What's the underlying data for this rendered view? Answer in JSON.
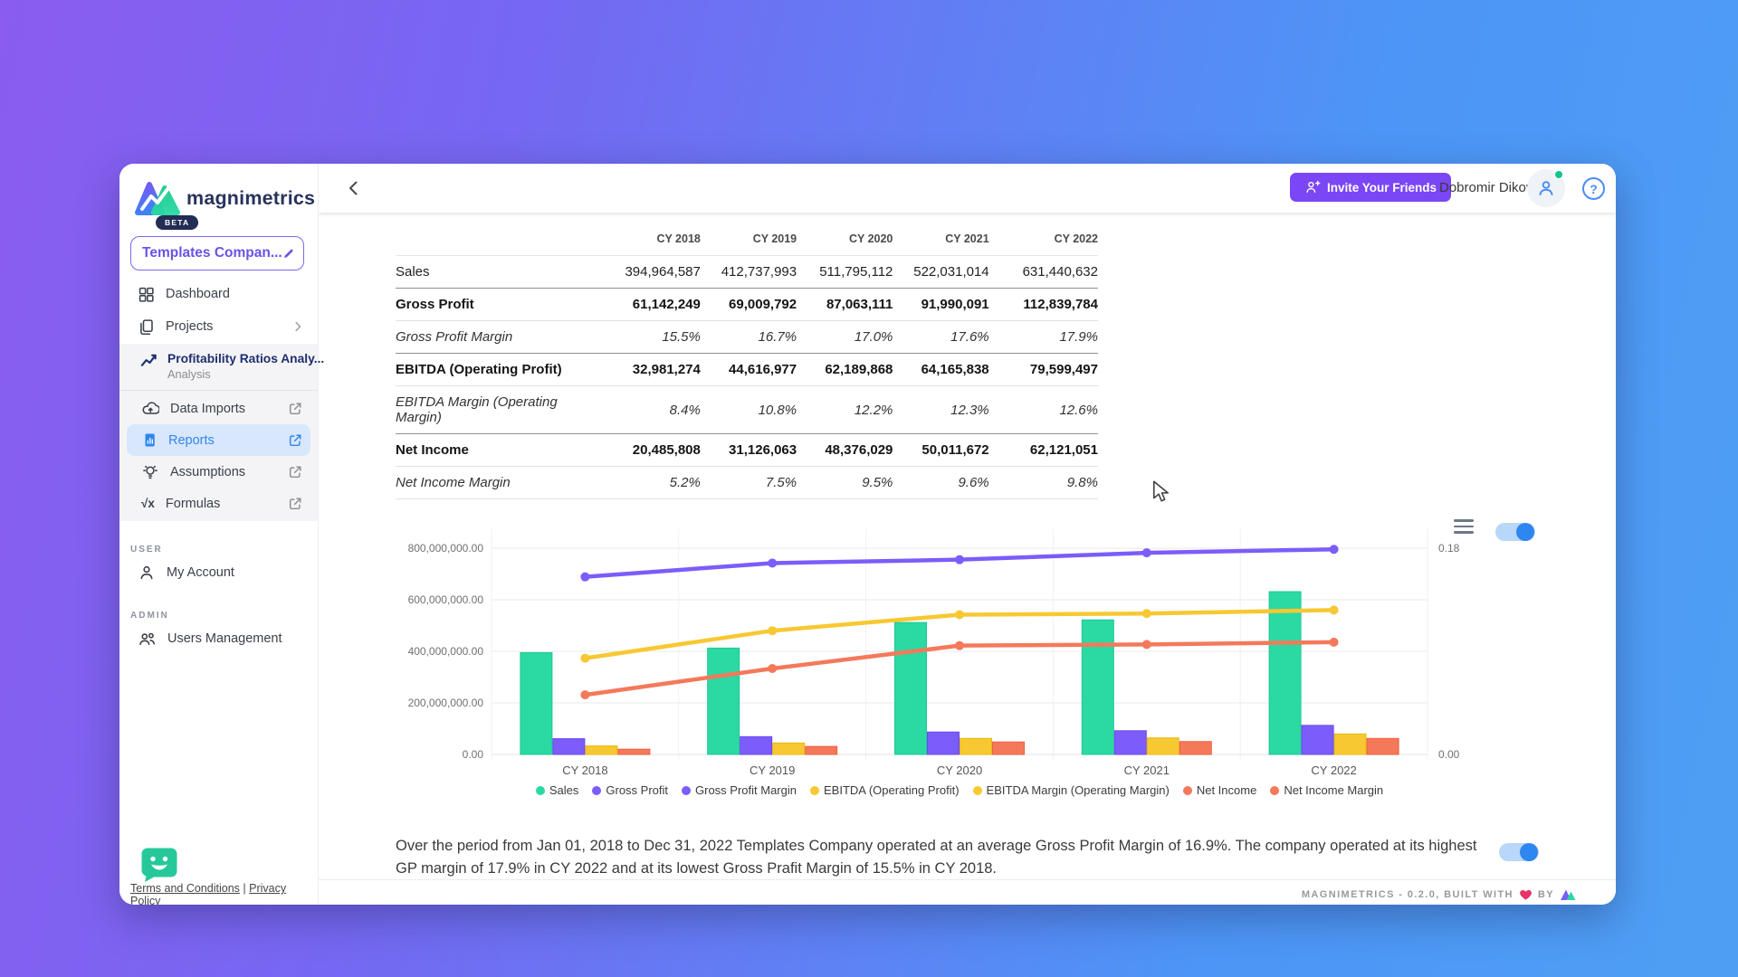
{
  "colors": {
    "accent_purple": "#7B46F5",
    "accent_blue": "#2F86F0",
    "teal": "#2BD9A3",
    "purple": "#7C5CFA",
    "yellow": "#F7C832",
    "orange": "#F4795B",
    "navy": "#1D2F6F",
    "online_green": "#10C48B",
    "heart_pink": "#E8336A"
  },
  "sidebar": {
    "brand": {
      "name": "magnimetrics",
      "badge": "BETA"
    },
    "project_selector": {
      "label": "Templates Compan..."
    },
    "menu": [
      {
        "label": "Dashboard",
        "icon": "dashboard",
        "chevron": false
      },
      {
        "label": "Projects",
        "icon": "projects",
        "chevron": true
      }
    ],
    "analysis_group": {
      "title": "Profitability Ratios Analy...",
      "subtitle": "Analysis",
      "icon": "trend"
    },
    "analysis_items": [
      {
        "label": "Data Imports",
        "icon": "cloud-upload",
        "external": true,
        "active": false
      },
      {
        "label": "Reports",
        "icon": "report",
        "external": true,
        "active": true
      },
      {
        "label": "Assumptions",
        "icon": "bulb",
        "external": true,
        "active": false
      },
      {
        "label": "Formulas",
        "icon": "sqrt",
        "external": true,
        "active": false
      }
    ],
    "sections": [
      {
        "label": "USER",
        "items": [
          {
            "label": "My Account",
            "icon": "person"
          }
        ]
      },
      {
        "label": "ADMIN",
        "items": [
          {
            "label": "Users Management",
            "icon": "people"
          }
        ]
      }
    ],
    "legal": {
      "terms": "Terms and Conditions",
      "separator": "|",
      "privacy": "Privacy Policy"
    }
  },
  "topbar": {
    "invite_label": "Invite Your Friends",
    "user_name": "Dobromir Dikov"
  },
  "table": {
    "columns": [
      "CY 2018",
      "CY 2019",
      "CY 2020",
      "CY 2021",
      "CY 2022"
    ],
    "rows": [
      {
        "label": "Sales",
        "style": "normal",
        "values": [
          "394,964,587",
          "412,737,993",
          "511,795,112",
          "522,031,014",
          "631,440,632"
        ]
      },
      {
        "label": "Gross Profit",
        "style": "bold",
        "values": [
          "61,142,249",
          "69,009,792",
          "87,063,111",
          "91,990,091",
          "112,839,784"
        ]
      },
      {
        "label": "Gross Profit Margin",
        "style": "italic",
        "values": [
          "15.5%",
          "16.7%",
          "17.0%",
          "17.6%",
          "17.9%"
        ]
      },
      {
        "label": "EBITDA (Operating Profit)",
        "style": "bold",
        "values": [
          "32,981,274",
          "44,616,977",
          "62,189,868",
          "64,165,838",
          "79,599,497"
        ]
      },
      {
        "label": "EBITDA Margin (Operating Margin)",
        "style": "italic",
        "values": [
          "8.4%",
          "10.8%",
          "12.2%",
          "12.3%",
          "12.6%"
        ]
      },
      {
        "label": "Net Income",
        "style": "bold",
        "values": [
          "20,485,808",
          "31,126,063",
          "48,376,029",
          "50,011,672",
          "62,121,051"
        ]
      },
      {
        "label": "Net Income Margin",
        "style": "italic",
        "values": [
          "5.2%",
          "7.5%",
          "9.5%",
          "9.6%",
          "9.8%"
        ]
      }
    ]
  },
  "chart_data": {
    "type": "bar+line",
    "categories": [
      "CY 2018",
      "CY 2019",
      "CY 2020",
      "CY 2021",
      "CY 2022"
    ],
    "left_axis": {
      "min": 0,
      "max": 800000000,
      "ticks": [
        "0.00",
        "200,000,000.00",
        "400,000,000.00",
        "600,000,000.00",
        "800,000,000.00"
      ]
    },
    "right_axis": {
      "min": 0,
      "max": 0.18,
      "ticks": [
        "0.00",
        "0.18"
      ]
    },
    "grid": true,
    "legend_position": "bottom",
    "bar_series": [
      {
        "name": "Sales",
        "color": "#2BD9A3",
        "border": "#1EC795",
        "values": [
          394964587,
          412737993,
          511795112,
          522031014,
          631440632
        ]
      },
      {
        "name": "Gross Profit",
        "color": "#7C5CFA",
        "border": "#6A48F0",
        "values": [
          61142249,
          69009792,
          87063111,
          91990091,
          112839784
        ]
      },
      {
        "name": "EBITDA (Operating Profit)",
        "color": "#F7C832",
        "border": "#E8B80D",
        "values": [
          32981274,
          44616977,
          62189868,
          64165838,
          79599497
        ]
      },
      {
        "name": "Net Income",
        "color": "#F4795B",
        "border": "#EF5F3C",
        "values": [
          20485808,
          31126063,
          48376029,
          50011672,
          62121051
        ]
      }
    ],
    "line_series": [
      {
        "name": "Gross Profit Margin",
        "color": "#7C5CFA",
        "values": [
          0.155,
          0.167,
          0.17,
          0.176,
          0.179
        ]
      },
      {
        "name": "EBITDA Margin (Operating Margin)",
        "color": "#F7C832",
        "values": [
          0.084,
          0.108,
          0.122,
          0.123,
          0.126
        ]
      },
      {
        "name": "Net Income Margin",
        "color": "#F4795B",
        "values": [
          0.052,
          0.075,
          0.095,
          0.096,
          0.098
        ]
      }
    ],
    "legend": [
      {
        "label": "Sales",
        "color": "#2BD9A3"
      },
      {
        "label": "Gross Profit",
        "color": "#7C5CFA"
      },
      {
        "label": "Gross Profit Margin",
        "color": "#7C5CFA"
      },
      {
        "label": "EBITDA (Operating Profit)",
        "color": "#F7C832"
      },
      {
        "label": "EBITDA Margin (Operating Margin)",
        "color": "#F7C832"
      },
      {
        "label": "Net Income",
        "color": "#F4795B"
      },
      {
        "label": "Net Income Margin",
        "color": "#F4795B"
      }
    ]
  },
  "insight": {
    "text": "Over the period from Jan 01, 2018 to Dec 31, 2022 Templates Company operated at an average Gross Profit Margin of 16.9%. The company operated at its highest GP margin of 17.9% in CY 2022 and at its lowest Gross Prafit Margin of 15.5% in CY 2018."
  },
  "controls": {
    "chart_toggle_on": true,
    "insight_toggle_on": true
  },
  "footer": {
    "credit_prefix": "MAGNIMETRICS - 0.2.0, BUILT WITH",
    "credit_by": "BY"
  }
}
